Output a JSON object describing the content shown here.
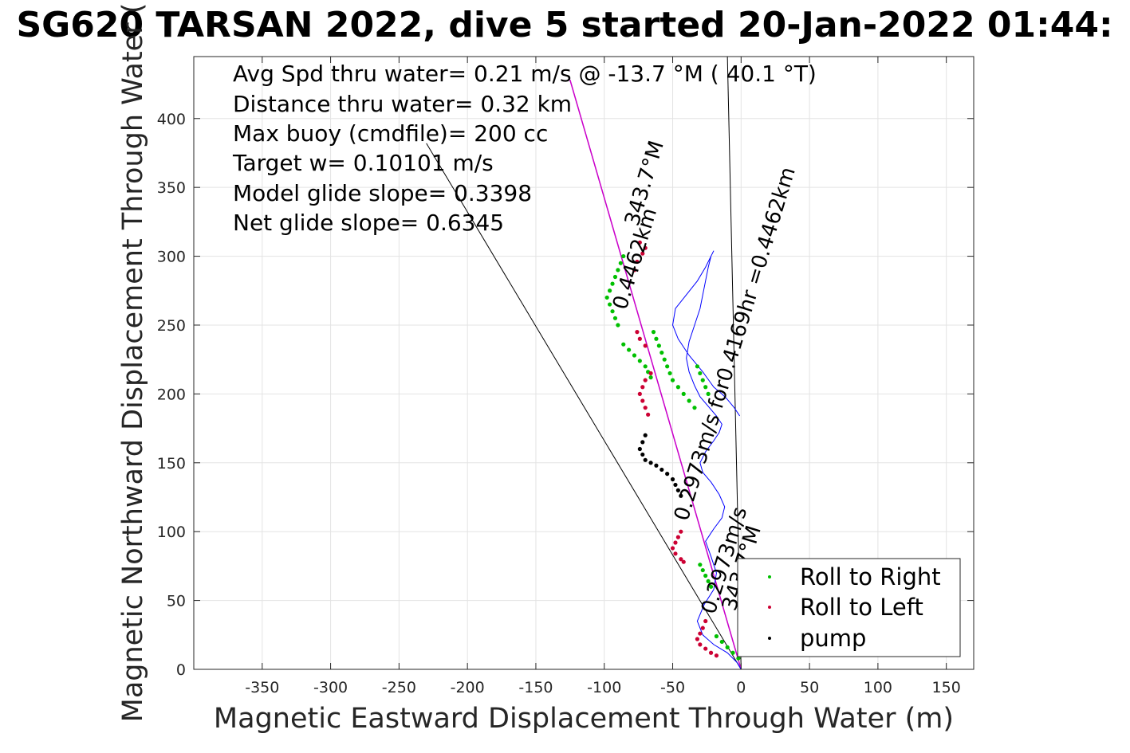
{
  "chart_data": {
    "type": "scatter",
    "title": "SG620 TARSAN 2022, dive 5 started 20-Jan-2022 01:44:",
    "xlabel": "Magnetic Eastward Displacement Through Water (m)",
    "ylabel": "Magnetic Northward Displacement Through Water (",
    "xlim": [
      -400,
      170
    ],
    "ylim": [
      0,
      445
    ],
    "xticks": [
      -350,
      -300,
      -250,
      -200,
      -150,
      -100,
      -50,
      0,
      50,
      100,
      150
    ],
    "yticks": [
      0,
      50,
      100,
      150,
      200,
      250,
      300,
      350,
      400
    ],
    "xtick_labels": [
      "-350",
      "-300",
      "-250",
      "-200",
      "-150",
      "-100",
      "-50",
      "0",
      "50",
      "100",
      "150"
    ],
    "ytick_labels": [
      "0",
      "50",
      "100",
      "150",
      "200",
      "250",
      "300",
      "350",
      "400"
    ],
    "grid": true,
    "legend_position": "bottom-right",
    "annotations": [
      "Avg Spd thru water=  0.21 m/s @ -13.7 °M ( 40.1 °T)",
      "Distance thru water=  0.32 km",
      "Max buoy (cmdfile)= 200 cc",
      "Target w= 0.10101 m/s",
      "Model glide slope= 0.3398",
      "Net glide slope= 0.6345"
    ],
    "line_labels": [
      {
        "text": "0.4462km 343.7°M",
        "lines": [
          "0.4462km",
          "343.7°M"
        ]
      },
      {
        "text": "0.2973m/s for0.4169hr =0.4462km",
        "lines": [
          "0.2973m/s for0.4169hr =0.4462km"
        ]
      },
      {
        "text": "0.2973m/s 343.7°M",
        "lines": [
          "0.2973m/s",
          "343.7°M"
        ]
      }
    ],
    "reference_lines": [
      {
        "x": [
          0,
          -125
        ],
        "y": [
          0,
          428
        ],
        "color": "#000000"
      },
      {
        "x": [
          0,
          -230
        ],
        "y": [
          0,
          382
        ],
        "color": "#000000"
      },
      {
        "x": [
          0,
          -10
        ],
        "y": [
          0,
          445
        ],
        "color": "#000000"
      },
      {
        "x": [
          0,
          -125
        ],
        "y": [
          0,
          428
        ],
        "color": "#cc00cc"
      }
    ],
    "track": {
      "x": [
        0,
        -3,
        -10,
        -20,
        -28,
        -32,
        -27,
        -20,
        -18,
        -22,
        -26,
        -20,
        -14,
        -12,
        -16,
        -22,
        -28,
        -30,
        -26,
        -20,
        -16,
        -14,
        -18,
        -24,
        -30,
        -34,
        -38,
        -40,
        -38,
        -34,
        -30,
        -28,
        -26,
        -24,
        -22,
        -20,
        -22,
        -26,
        -32,
        -40,
        -48,
        -50,
        -46,
        -38,
        -28,
        -20,
        -14,
        -10,
        -5,
        -1
      ],
      "y": [
        0,
        5,
        12,
        18,
        25,
        35,
        47,
        58,
        70,
        82,
        93,
        102,
        110,
        118,
        127,
        136,
        143,
        150,
        158,
        166,
        172,
        178,
        184,
        191,
        198,
        206,
        216,
        226,
        238,
        250,
        262,
        272,
        282,
        292,
        300,
        304,
        300,
        292,
        282,
        272,
        262,
        250,
        240,
        228,
        216,
        205,
        200,
        196,
        190,
        184
      ],
      "color": "#0000ff"
    },
    "series": [
      {
        "name": "Roll to Right",
        "color": "#00c000",
        "x": [
          -2,
          -6,
          -10,
          -14,
          -18,
          -22,
          -24,
          -26,
          -28,
          -30,
          -24,
          -26,
          -28,
          -30,
          -32,
          -34,
          -38,
          -42,
          -46,
          -50,
          -52,
          -54,
          -56,
          -58,
          -60,
          -62,
          -64,
          -66,
          -68,
          -70,
          -74,
          -78,
          -82,
          -86,
          -90,
          -92,
          -94,
          -96,
          -98,
          -96,
          -94,
          -92,
          -90,
          -88,
          -86
        ],
        "y": [
          8,
          12,
          16,
          20,
          24,
          60,
          64,
          68,
          72,
          76,
          200,
          205,
          210,
          215,
          220,
          190,
          195,
          200,
          205,
          210,
          215,
          220,
          225,
          230,
          235,
          240,
          245,
          212,
          216,
          220,
          224,
          228,
          232,
          236,
          250,
          255,
          260,
          265,
          270,
          275,
          280,
          285,
          290,
          295,
          300
        ]
      },
      {
        "name": "Roll to Left",
        "color": "#cc0033",
        "x": [
          -26,
          -28,
          -30,
          -32,
          -30,
          -26,
          -22,
          -18,
          -44,
          -46,
          -48,
          -50,
          -48,
          -44,
          -42,
          -68,
          -70,
          -72,
          -74,
          -72,
          -70,
          -66,
          -70,
          -74,
          -76,
          -78,
          -76,
          -72,
          -70,
          -74
        ],
        "y": [
          35,
          30,
          26,
          22,
          18,
          15,
          12,
          10,
          100,
          96,
          92,
          88,
          84,
          80,
          78,
          185,
          190,
          195,
          200,
          205,
          210,
          215,
          235,
          240,
          245,
          290,
          296,
          302,
          306,
          310
        ]
      },
      {
        "name": "pump",
        "color": "#000000",
        "x": [
          -70,
          -72,
          -74,
          -72,
          -70,
          -66,
          -62,
          -58,
          -54,
          -50,
          -48,
          -46,
          -44
        ],
        "y": [
          170,
          165,
          160,
          156,
          152,
          150,
          148,
          145,
          142,
          138,
          134,
          130,
          126
        ]
      }
    ]
  }
}
